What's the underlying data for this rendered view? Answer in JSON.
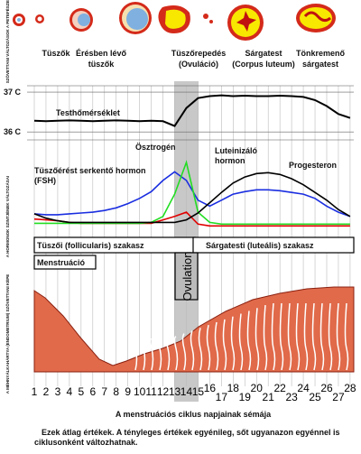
{
  "side_labels": [
    "SZÖVETTANI VÁLTOZÁSOK A PETEFÉSZEKBEN",
    "A HORMONOK SZINTJÉNEK VÁLTOZÁSAI",
    "A MÉHNYÁLKAHÁRTYA (ENDOMETRIUM) SZÖVETTANI KÉPE"
  ],
  "stages": [
    [
      "Tüszők"
    ],
    [
      "Érésben lévő",
      "tüszők"
    ],
    [
      "Tüszőrepedés",
      "(Ovuláció)"
    ],
    [
      "Sárgatest",
      "(Corpus luteum)"
    ],
    [
      "Tönkremenő",
      "sárgatest"
    ]
  ],
  "chart_data": [
    {
      "type": "line",
      "title": "Testhőmérséklet",
      "ylim": [
        35.8,
        37.16
      ],
      "yticks": [
        {
          "value": 37,
          "label": "37 C"
        },
        {
          "value": 36,
          "label": "36 C"
        }
      ],
      "grid": true,
      "series": [
        {
          "name": "Testhőmérséklet",
          "color": "#000000",
          "values": [
            36.28,
            36.27,
            36.28,
            36.29,
            36.28,
            36.27,
            36.28,
            36.29,
            36.28,
            36.27,
            36.28,
            36.27,
            36.15,
            36.6,
            36.85,
            36.9,
            36.92,
            36.9,
            36.91,
            36.9,
            36.9,
            36.91,
            36.9,
            36.88,
            36.8,
            36.65,
            36.45,
            36.35
          ]
        }
      ]
    },
    {
      "type": "line",
      "ylim": [
        0,
        100
      ],
      "series": [
        {
          "name": [
            "Tüszőérést serkentő hormon",
            "(FSH)"
          ],
          "color": "#e00000",
          "values": [
            13,
            12,
            11,
            9,
            8,
            8,
            8,
            8,
            8,
            8,
            8,
            12,
            16,
            21,
            7,
            5,
            5,
            5,
            5,
            5,
            5,
            5,
            5,
            5,
            5,
            5,
            5,
            5
          ]
        },
        {
          "name": [
            "Ösztrogén"
          ],
          "color": "#1a2ee0",
          "values": [
            19,
            18,
            18,
            19,
            20,
            21,
            23,
            26,
            31,
            37,
            45,
            58,
            68,
            58,
            35,
            28,
            35,
            42,
            45,
            47,
            47,
            46,
            44,
            42,
            37,
            28,
            21,
            16
          ]
        },
        {
          "name": [
            "Luteinizáló",
            "hormon"
          ],
          "color": "#22dd22",
          "values": [
            8,
            8,
            8,
            8,
            8,
            8,
            8,
            8,
            8,
            8,
            9,
            16,
            42,
            79,
            21,
            9,
            7,
            7,
            7,
            7,
            7,
            7,
            7,
            7,
            7,
            7,
            7,
            7
          ]
        },
        {
          "name": [
            "Progesteron"
          ],
          "color": "#000000",
          "values": [
            19,
            14,
            11,
            9,
            9,
            9,
            9,
            9,
            9,
            9,
            9,
            9,
            9,
            12,
            20,
            32,
            44,
            55,
            62,
            66,
            67,
            65,
            60,
            53,
            44,
            35,
            24,
            16
          ]
        }
      ]
    }
  ],
  "phases": {
    "follicular": "Tüszői (follicularis) szakasz",
    "luteal": "Sárgatesti (luteális) szakasz",
    "menstruation": "Menstruáció",
    "ovulation": "Ovulation"
  },
  "days": [
    1,
    2,
    3,
    4,
    5,
    6,
    7,
    8,
    9,
    10,
    11,
    12,
    13,
    14,
    15,
    16,
    17,
    18,
    19,
    20,
    21,
    22,
    23,
    24,
    25,
    26,
    27,
    28
  ],
  "x_label": "A menstruációs ciklus napjainak sémája",
  "note": [
    "Ezek átlag értékek.  A tényleges értékek egyénileg, sőt ugyanazon egyénnel is",
    "ciklusonként változhatnak."
  ]
}
